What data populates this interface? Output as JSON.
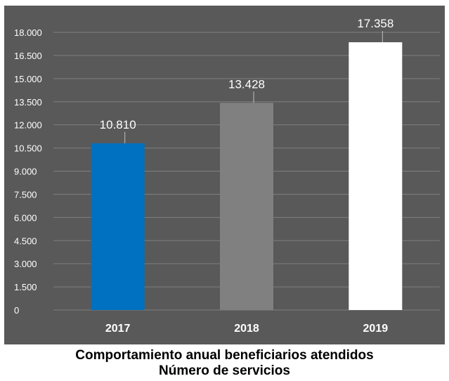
{
  "chart_data": {
    "type": "bar",
    "categories": [
      "2017",
      "2018",
      "2019"
    ],
    "values": [
      10810,
      13428,
      17358
    ],
    "value_labels": [
      "10.810",
      "13.428",
      "17.358"
    ],
    "yticks": [
      0,
      1500,
      3000,
      4500,
      6000,
      7500,
      9000,
      10500,
      12000,
      13500,
      15000,
      16500,
      18000
    ],
    "ytick_labels": [
      "0",
      "1.500",
      "3.000",
      "4.500",
      "6.000",
      "7.500",
      "9.000",
      "10.500",
      "12.000",
      "13.500",
      "15.000",
      "16.500",
      "18.000"
    ],
    "ylim": [
      0,
      18000
    ],
    "grid": true,
    "legend": "none",
    "bar_colors": [
      "#0070c0",
      "#808080",
      "#ffffff"
    ],
    "background": "#595959",
    "text_color": "#ffffff",
    "gridline_color": "#7f7f7f"
  },
  "caption": {
    "line1": "Comportamiento anual beneficiarios atendidos",
    "line2": "Número de servicios"
  }
}
